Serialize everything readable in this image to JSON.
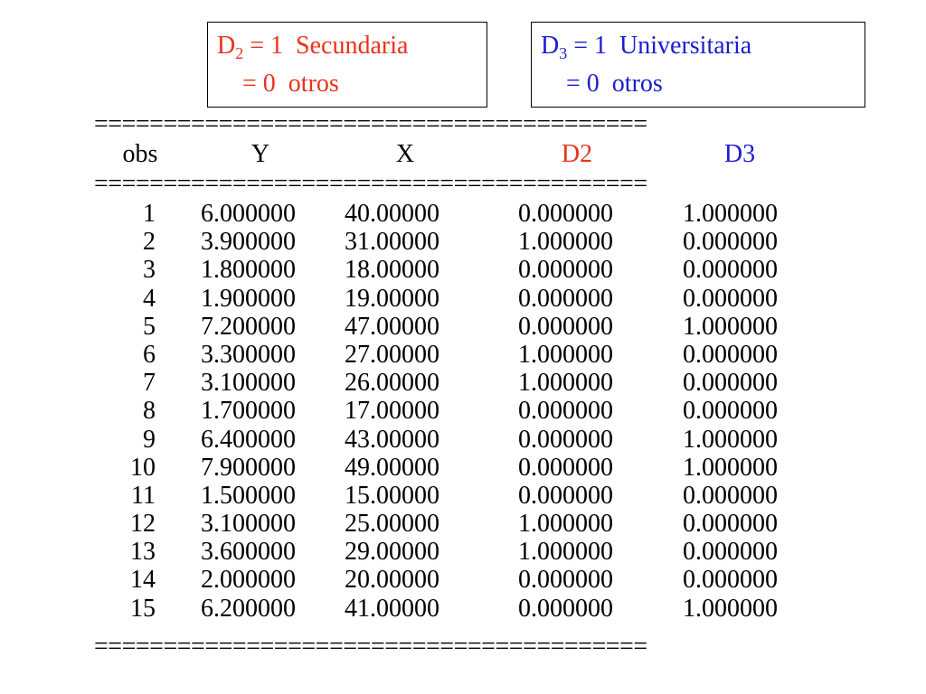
{
  "legend": {
    "d2": {
      "var": "D",
      "sub": "2",
      "line1_rest": " = 1  Secundaria",
      "line2": "= 0  otros",
      "color": "#e8331a"
    },
    "d3": {
      "var": "D",
      "sub": "3",
      "line1_rest": " = 1  Universitaria",
      "line2": "= 0  otros",
      "color": "#1c1ccf"
    }
  },
  "rule": "========================================",
  "table": {
    "headers": [
      "obs",
      "Y",
      "X",
      "D2",
      "D3"
    ],
    "rows": [
      [
        "1",
        "6.000000",
        "40.00000",
        "0.000000",
        "1.000000"
      ],
      [
        "2",
        "3.900000",
        "31.00000",
        "1.000000",
        "0.000000"
      ],
      [
        "3",
        "1.800000",
        "18.00000",
        "0.000000",
        "0.000000"
      ],
      [
        "4",
        "1.900000",
        "19.00000",
        "0.000000",
        "0.000000"
      ],
      [
        "5",
        "7.200000",
        "47.00000",
        "0.000000",
        "1.000000"
      ],
      [
        "6",
        "3.300000",
        "27.00000",
        "1.000000",
        "0.000000"
      ],
      [
        "7",
        "3.100000",
        "26.00000",
        "1.000000",
        "0.000000"
      ],
      [
        "8",
        "1.700000",
        "17.00000",
        "0.000000",
        "0.000000"
      ],
      [
        "9",
        "6.400000",
        "43.00000",
        "0.000000",
        "1.000000"
      ],
      [
        "10",
        "7.900000",
        "49.00000",
        "0.000000",
        "1.000000"
      ],
      [
        "11",
        "1.500000",
        "15.00000",
        "0.000000",
        "0.000000"
      ],
      [
        "12",
        "3.100000",
        "25.00000",
        "1.000000",
        "0.000000"
      ],
      [
        "13",
        "3.600000",
        "29.00000",
        "1.000000",
        "0.000000"
      ],
      [
        "14",
        "2.000000",
        "20.00000",
        "0.000000",
        "0.000000"
      ],
      [
        "15",
        "6.200000",
        "41.00000",
        "0.000000",
        "1.000000"
      ]
    ]
  }
}
